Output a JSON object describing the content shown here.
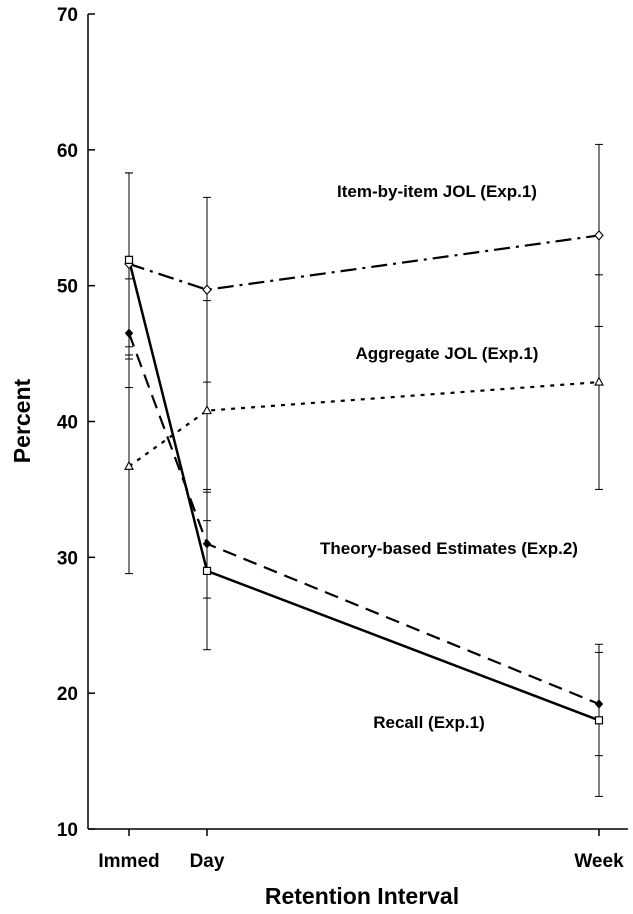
{
  "chart_data": {
    "type": "line",
    "title": "",
    "xlabel": "Retention Interval",
    "ylabel": "Percent",
    "categories": [
      "Immed",
      "Day",
      "Week"
    ],
    "x": [
      0,
      1,
      7
    ],
    "ylim": [
      10,
      70
    ],
    "yticks": [
      10,
      20,
      30,
      40,
      50,
      60,
      70
    ],
    "grid": false,
    "series": [
      {
        "name": "Item-by-item JOL (Exp.1)",
        "values": [
          51.6,
          49.7,
          53.7
        ],
        "errors": [
          6.7,
          6.8,
          6.7
        ],
        "line_style": "dash-dot",
        "marker": "diamond-open"
      },
      {
        "name": "Aggregate JOL (Exp.1)",
        "values": [
          36.7,
          40.8,
          42.9
        ],
        "errors": [
          7.9,
          8.1,
          7.9
        ],
        "line_style": "dotted",
        "marker": "triangle-open"
      },
      {
        "name": "Theory-based Estimates (Exp.2)",
        "values": [
          46.5,
          31.0,
          19.2
        ],
        "errors": [
          4.0,
          4.0,
          3.8
        ],
        "line_style": "dashed",
        "marker": "diamond-filled"
      },
      {
        "name": "Recall (Exp.1)",
        "values": [
          51.9,
          29.0,
          18.0
        ],
        "errors": [
          6.4,
          5.8,
          5.6
        ],
        "line_style": "solid",
        "marker": "square-open"
      }
    ]
  },
  "colors": {
    "ink": "#000000",
    "background": "#ffffff"
  }
}
